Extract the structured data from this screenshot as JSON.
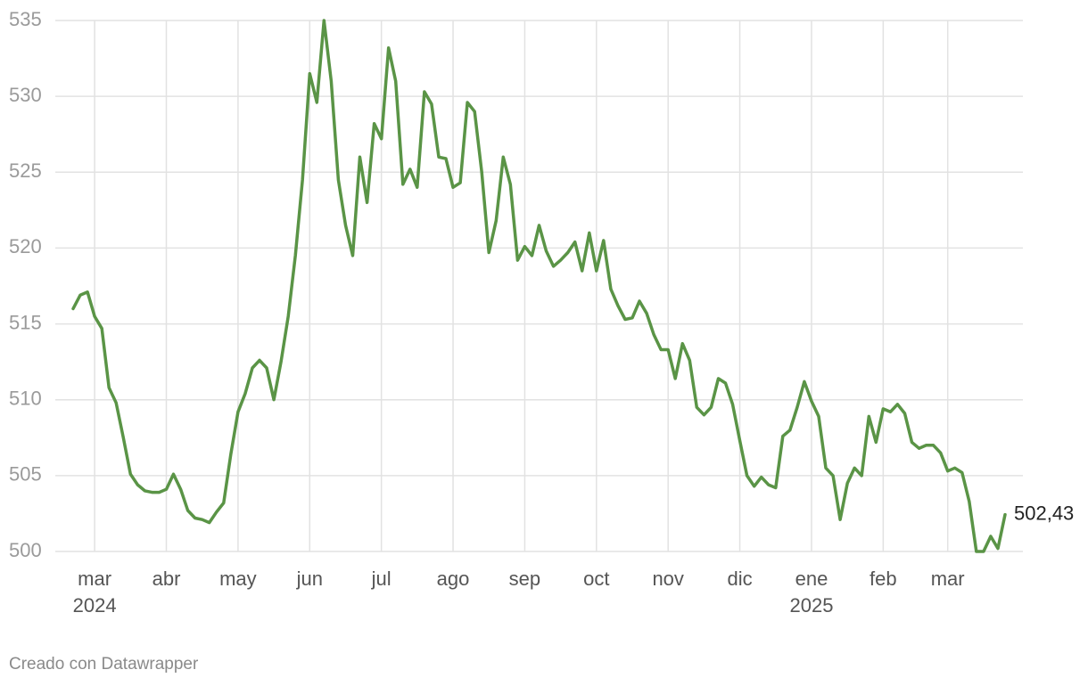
{
  "chart_data": {
    "type": "line",
    "credit": "Creado con Datawrapper",
    "categories": [
      null,
      null,
      null,
      "mar",
      null,
      null,
      null,
      null,
      null,
      null,
      null,
      null,
      null,
      "abr",
      null,
      null,
      null,
      null,
      null,
      null,
      null,
      null,
      null,
      "may",
      null,
      null,
      null,
      null,
      null,
      null,
      null,
      null,
      null,
      "jun",
      null,
      null,
      null,
      null,
      null,
      null,
      null,
      null,
      null,
      "jul",
      null,
      null,
      null,
      null,
      null,
      null,
      null,
      null,
      null,
      "ago",
      null,
      null,
      null,
      null,
      null,
      null,
      null,
      null,
      null,
      "sep",
      null,
      null,
      null,
      null,
      null,
      null,
      null,
      null,
      null,
      "oct",
      null,
      null,
      null,
      null,
      null,
      null,
      null,
      null,
      null,
      "nov",
      null,
      null,
      null,
      null,
      null,
      null,
      null,
      null,
      null,
      "dic",
      null,
      null,
      null,
      null,
      null,
      null,
      null,
      null,
      null,
      "ene",
      null,
      null,
      null,
      null,
      null,
      null,
      null,
      null,
      null,
      "feb",
      null,
      null,
      null,
      null,
      null,
      null,
      null,
      null,
      "mar",
      null,
      null,
      null,
      null,
      null,
      null,
      null,
      null
    ],
    "x_sublabels": [
      null,
      null,
      null,
      "2024",
      null,
      null,
      null,
      null,
      null,
      null,
      null,
      null,
      null,
      null,
      null,
      null,
      null,
      null,
      null,
      null,
      null,
      null,
      null,
      null,
      null,
      null,
      null,
      null,
      null,
      null,
      null,
      null,
      null,
      null,
      null,
      null,
      null,
      null,
      null,
      null,
      null,
      null,
      null,
      null,
      null,
      null,
      null,
      null,
      null,
      null,
      null,
      null,
      null,
      null,
      null,
      null,
      null,
      null,
      null,
      null,
      null,
      null,
      null,
      null,
      null,
      null,
      null,
      null,
      null,
      null,
      null,
      null,
      null,
      null,
      null,
      null,
      null,
      null,
      null,
      null,
      null,
      null,
      null,
      null,
      null,
      null,
      null,
      null,
      null,
      null,
      null,
      null,
      null,
      null,
      null,
      null,
      null,
      null,
      null,
      null,
      null,
      null,
      null,
      "2025",
      null,
      null,
      null,
      null,
      null,
      null,
      null,
      null,
      null,
      null,
      null,
      null,
      null,
      null,
      null,
      null,
      null,
      null,
      null,
      null,
      null,
      null,
      null,
      null,
      null,
      null,
      null
    ],
    "series": [
      {
        "color": "#5a9446",
        "values": [
          516,
          516.9,
          517.1,
          515.5,
          514.7,
          510.8,
          509.8,
          507.5,
          505.1,
          504.4,
          504,
          503.9,
          503.9,
          504.1,
          505.1,
          504.1,
          502.7,
          502.2,
          502.1,
          501.9,
          502.6,
          503.2,
          506.4,
          509.2,
          510.4,
          512.1,
          512.6,
          512.1,
          510,
          512.5,
          515.5,
          519.5,
          524.5,
          531.5,
          529.6,
          535,
          531,
          524.5,
          521.5,
          519.5,
          526,
          523,
          528.2,
          527.2,
          533.2,
          531,
          524.2,
          525.2,
          524,
          530.3,
          529.5,
          526,
          525.9,
          524,
          524.3,
          529.6,
          529,
          525,
          519.7,
          521.8,
          526,
          524.2,
          519.2,
          520.1,
          519.5,
          521.5,
          519.8,
          518.8,
          519.2,
          519.7,
          520.4,
          518.5,
          521,
          518.5,
          520.5,
          517.3,
          516.2,
          515.3,
          515.4,
          516.5,
          515.7,
          514.3,
          513.3,
          513.3,
          511.4,
          513.7,
          512.6,
          509.5,
          509,
          509.5,
          511.4,
          511.1,
          509.7,
          507.3,
          505,
          504.3,
          504.9,
          504.4,
          504.2,
          507.6,
          508,
          509.5,
          511.2,
          509.9,
          508.9,
          505.5,
          505,
          502.1,
          504.5,
          505.5,
          505,
          508.9,
          507.2,
          509.4,
          509.2,
          509.7,
          509.1,
          507.2,
          506.8,
          507,
          507,
          506.5,
          505.3,
          505.5,
          505.2,
          503.3,
          500,
          500,
          501,
          500.2,
          502.43
        ],
        "value_labels": [
          null,
          null,
          null,
          null,
          null,
          null,
          null,
          null,
          null,
          null,
          null,
          null,
          null,
          null,
          null,
          null,
          null,
          null,
          null,
          null,
          null,
          null,
          null,
          null,
          null,
          null,
          null,
          null,
          null,
          null,
          null,
          null,
          null,
          null,
          null,
          null,
          null,
          null,
          null,
          null,
          null,
          null,
          null,
          null,
          null,
          null,
          null,
          null,
          null,
          null,
          null,
          null,
          null,
          null,
          null,
          null,
          null,
          null,
          null,
          null,
          null,
          null,
          null,
          null,
          null,
          null,
          null,
          null,
          null,
          null,
          null,
          null,
          null,
          null,
          null,
          null,
          null,
          null,
          null,
          null,
          null,
          null,
          null,
          null,
          null,
          null,
          null,
          null,
          null,
          null,
          null,
          null,
          null,
          null,
          null,
          null,
          null,
          null,
          null,
          null,
          null,
          null,
          null,
          null,
          null,
          null,
          null,
          null,
          null,
          null,
          null,
          null,
          null,
          null,
          null,
          null,
          null,
          null,
          null,
          null,
          null,
          null,
          null,
          null,
          null,
          null,
          null,
          null,
          null,
          null,
          "502,43"
        ]
      }
    ],
    "ylim": [
      500,
      535
    ],
    "yticks": [
      500,
      505,
      510,
      515,
      520,
      525,
      530,
      535
    ],
    "grid": true
  }
}
